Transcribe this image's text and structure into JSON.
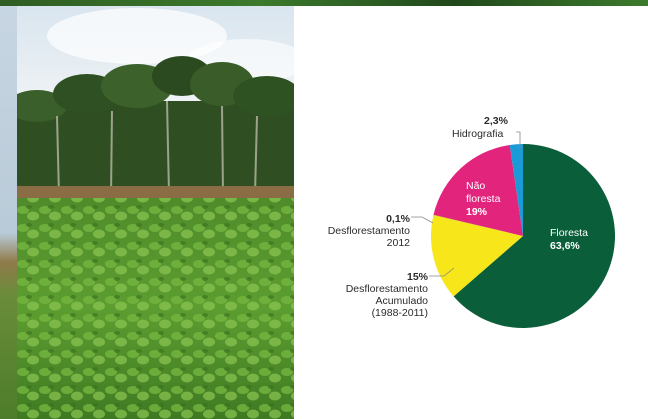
{
  "chart_data": {
    "type": "pie",
    "slices": [
      {
        "label": "Floresta",
        "value": 63.6,
        "display": "63,6%",
        "color": "#0a5e3a"
      },
      {
        "label": "Desflorestamento Acumulado (1988-2011)",
        "label_lines": [
          "Desflorestamento",
          "Acumulado",
          "(1988-2011)"
        ],
        "value": 15.0,
        "display": "15%",
        "color": "#f6e61a"
      },
      {
        "label": "Desflorestamento 2012",
        "label_lines": [
          "Desflorestamento",
          "2012"
        ],
        "value": 0.1,
        "display": "0,1%",
        "color": "#c8c60c"
      },
      {
        "label": "Não floresta",
        "label_lines": [
          "Não",
          "floresta"
        ],
        "value": 19.0,
        "display": "19%",
        "color": "#e2247d"
      },
      {
        "label": "Hidrografia",
        "value": 2.3,
        "display": "2,3%",
        "color": "#1a9ad6"
      }
    ]
  }
}
